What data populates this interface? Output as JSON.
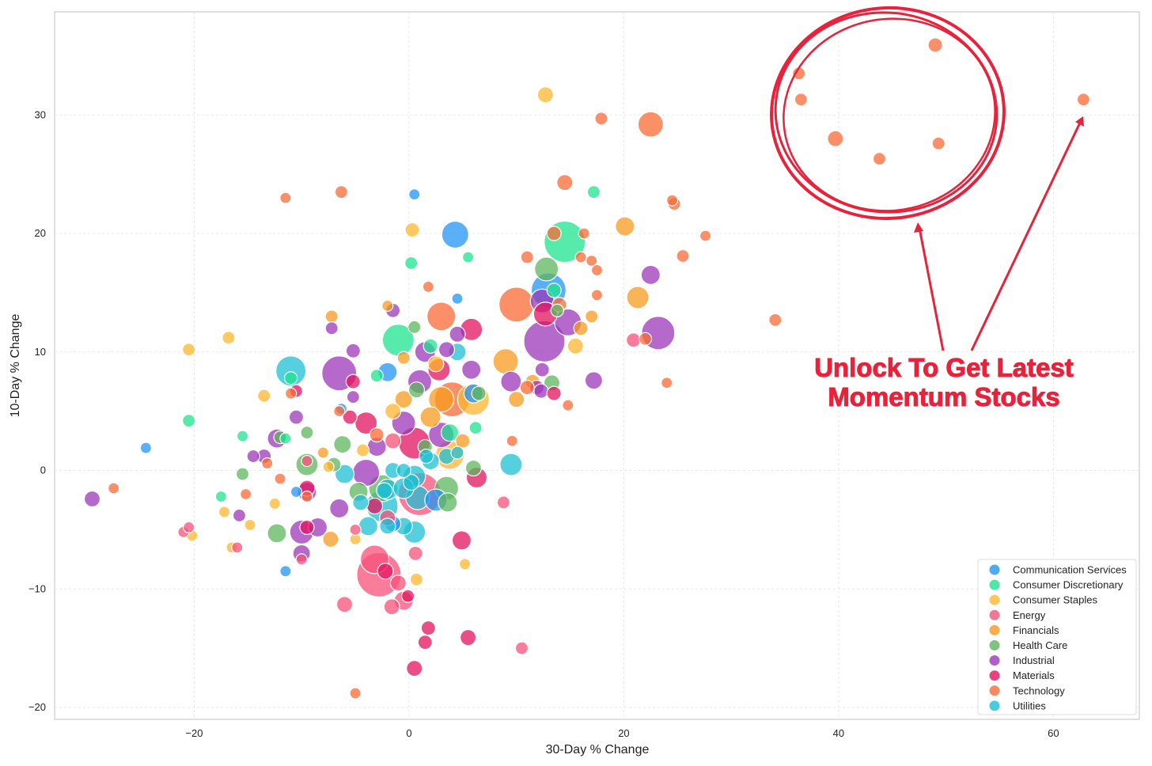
{
  "chart_data": {
    "type": "scatter",
    "title": "",
    "xlabel": "30-Day % Change",
    "ylabel": "10-Day % Change",
    "xlim": [
      -33,
      68
    ],
    "ylim": [
      -21,
      38.7
    ],
    "xticks": [
      -20,
      0,
      20,
      40,
      60
    ],
    "yticks": [
      -20,
      -10,
      0,
      10,
      20,
      30
    ],
    "xtick_labels": [
      "−20",
      "0",
      "20",
      "40",
      "60"
    ],
    "ytick_labels": [
      "−20",
      "−10",
      "0",
      "10",
      "20",
      "30"
    ],
    "grid": true,
    "legend_position": "bottom-right",
    "series": [
      {
        "name": "Communication Services",
        "color": "#2196F3",
        "points": [
          [
            -24.5,
            1.9,
            7
          ],
          [
            0.5,
            23.3,
            7
          ],
          [
            4.3,
            19.9,
            17
          ],
          [
            -11.5,
            -8.5,
            7
          ],
          [
            13,
            15.2,
            22
          ],
          [
            -2,
            8.3,
            12
          ],
          [
            -10.5,
            -1.8,
            7
          ],
          [
            -6.3,
            5.2,
            7
          ],
          [
            4.5,
            14.5,
            7
          ],
          [
            6,
            6.5,
            12
          ],
          [
            -1.5,
            -4.5,
            10
          ],
          [
            2.5,
            -2.5,
            14
          ]
        ]
      },
      {
        "name": "Consumer Discretionary",
        "color": "#1DE38F",
        "points": [
          [
            -20.5,
            4.2,
            8
          ],
          [
            -17.5,
            -2.2,
            7
          ],
          [
            -15.5,
            2.9,
            7
          ],
          [
            -11.5,
            2.7,
            7
          ],
          [
            14.5,
            19.3,
            26
          ],
          [
            17.2,
            23.5,
            8
          ],
          [
            5.5,
            18,
            7
          ],
          [
            0.2,
            17.5,
            8
          ],
          [
            -1,
            11,
            20
          ],
          [
            13.5,
            15.2,
            9
          ],
          [
            -3,
            8,
            8
          ],
          [
            6.2,
            3.6,
            8
          ],
          [
            -11,
            7.8,
            8
          ],
          [
            2,
            10.5,
            9
          ],
          [
            3.8,
            3.2,
            11
          ]
        ]
      },
      {
        "name": "Consumer Staples",
        "color": "#FFB62E",
        "points": [
          [
            12.7,
            31.7,
            10
          ],
          [
            0.3,
            20.3,
            9
          ],
          [
            -20.5,
            10.2,
            8
          ],
          [
            -16.8,
            11.2,
            8
          ],
          [
            -13.5,
            6.3,
            8
          ],
          [
            -20.2,
            -5.5,
            7
          ],
          [
            -17.2,
            -3.5,
            7
          ],
          [
            -14.8,
            -4.6,
            7
          ],
          [
            -16.5,
            -6.5,
            7
          ],
          [
            5.2,
            -7.9,
            7
          ],
          [
            0.7,
            -9.2,
            8
          ],
          [
            -5,
            -5.8,
            7
          ],
          [
            15.5,
            10.5,
            10
          ],
          [
            6,
            6,
            20
          ],
          [
            3.8,
            1.3,
            18
          ],
          [
            -1.5,
            5,
            10
          ],
          [
            2.5,
            9,
            10
          ],
          [
            -7.5,
            0.3,
            7
          ],
          [
            -12.5,
            -2.8,
            7
          ],
          [
            -4.3,
            1.7,
            8
          ]
        ]
      },
      {
        "name": "Energy",
        "color": "#F7527A",
        "points": [
          [
            -2.8,
            -8.8,
            28
          ],
          [
            -3.2,
            -7.5,
            18
          ],
          [
            -6,
            -11.3,
            10
          ],
          [
            -1.6,
            -11.5,
            10
          ],
          [
            -0.5,
            -11,
            12
          ],
          [
            0.6,
            -7,
            9
          ],
          [
            10.5,
            -15,
            8
          ],
          [
            8.8,
            -2.7,
            8
          ],
          [
            -1,
            -9.5,
            10
          ],
          [
            -2,
            -4,
            10
          ],
          [
            -5,
            -5,
            7
          ],
          [
            -21,
            -5.2,
            7
          ],
          [
            -20.5,
            -4.8,
            7
          ],
          [
            -16,
            -6.5,
            7
          ],
          [
            -10,
            -7.5,
            7
          ],
          [
            20.9,
            11,
            9
          ],
          [
            1,
            -2,
            27
          ],
          [
            -1.5,
            2.5,
            10
          ],
          [
            -9.5,
            0.8,
            7
          ]
        ]
      },
      {
        "name": "Financials",
        "color": "#F59B1E",
        "points": [
          [
            21.3,
            14.6,
            14
          ],
          [
            20.1,
            20.6,
            12
          ],
          [
            17,
            13,
            8
          ],
          [
            16,
            12,
            9
          ],
          [
            9,
            9.2,
            16
          ],
          [
            10,
            6,
            10
          ],
          [
            3,
            6,
            16
          ],
          [
            2,
            4.5,
            13
          ],
          [
            -0.5,
            6,
            11
          ],
          [
            -7.3,
            -5.8,
            10
          ],
          [
            -7.2,
            13,
            8
          ],
          [
            -2,
            13.9,
            7
          ],
          [
            5,
            2.5,
            9
          ],
          [
            -8,
            1.5,
            7
          ],
          [
            -0.5,
            9.5,
            8
          ],
          [
            11.5,
            7.5,
            9
          ]
        ]
      },
      {
        "name": "Health Care",
        "color": "#5DB55E",
        "points": [
          [
            12.8,
            17,
            15
          ],
          [
            13.8,
            13.5,
            8
          ],
          [
            13.3,
            7.4,
            10
          ],
          [
            0.5,
            12.1,
            8
          ],
          [
            0.7,
            6.8,
            10
          ],
          [
            3.5,
            -1.5,
            15
          ],
          [
            3.6,
            -2.7,
            12
          ],
          [
            -12.3,
            -5.3,
            12
          ],
          [
            -9.5,
            0.5,
            14
          ],
          [
            -6.2,
            2.2,
            11
          ],
          [
            -4.7,
            -1.8,
            12
          ],
          [
            -15.5,
            -0.3,
            8
          ],
          [
            -9.5,
            3.2,
            8
          ],
          [
            6,
            0.2,
            10
          ],
          [
            -2.5,
            -1.5,
            17
          ],
          [
            -7,
            0.5,
            9
          ],
          [
            1.5,
            2,
            9
          ],
          [
            -12,
            2.8,
            8
          ],
          [
            6.5,
            6.5,
            9
          ]
        ]
      },
      {
        "name": "Industrial",
        "color": "#9C37B8",
        "points": [
          [
            -29.5,
            -2.4,
            10
          ],
          [
            -6.5,
            8.2,
            22
          ],
          [
            -5.2,
            10.1,
            9
          ],
          [
            -7.2,
            12,
            8
          ],
          [
            12.6,
            10.9,
            26
          ],
          [
            23.2,
            11.6,
            21
          ],
          [
            22.5,
            16.5,
            12
          ],
          [
            14.8,
            12.5,
            17
          ],
          [
            12.4,
            14.3,
            15
          ],
          [
            17.2,
            7.6,
            11
          ],
          [
            -12.3,
            2.7,
            12
          ],
          [
            -13.5,
            1.2,
            9
          ],
          [
            -10,
            -5.2,
            15
          ],
          [
            -10,
            -7,
            11
          ],
          [
            -8.5,
            -4.8,
            12
          ],
          [
            -9.5,
            -1.8,
            12
          ],
          [
            -6.5,
            -3.2,
            12
          ],
          [
            -10.5,
            4.5,
            9
          ],
          [
            -5.2,
            6.2,
            8
          ],
          [
            -1.5,
            13.5,
            9
          ],
          [
            1.5,
            10,
            13
          ],
          [
            3.5,
            10.2,
            10
          ],
          [
            5.8,
            8.5,
            12
          ],
          [
            9.5,
            7.5,
            13
          ],
          [
            11.9,
            7,
            9
          ],
          [
            12.4,
            8.5,
            9
          ],
          [
            12.3,
            6.7,
            9
          ],
          [
            1,
            7.5,
            15
          ],
          [
            3,
            3,
            16
          ],
          [
            -0.5,
            4,
            15
          ],
          [
            -3,
            2,
            12
          ],
          [
            -15.8,
            -3.8,
            8
          ],
          [
            -14.5,
            1.2,
            8
          ],
          [
            -4,
            -0.2,
            17
          ],
          [
            4.5,
            11.5,
            10
          ]
        ]
      },
      {
        "name": "Materials",
        "color": "#E3135E",
        "points": [
          [
            0.5,
            -16.7,
            10
          ],
          [
            1.5,
            -14.5,
            9
          ],
          [
            1.8,
            -13.3,
            9
          ],
          [
            5.5,
            -14.1,
            10
          ],
          [
            4.9,
            -5.9,
            12
          ],
          [
            6.3,
            -0.6,
            13
          ],
          [
            -0.1,
            -10.6,
            8
          ],
          [
            -2.2,
            -8.5,
            10
          ],
          [
            12.7,
            13.2,
            15
          ],
          [
            5.8,
            11.9,
            14
          ],
          [
            13.5,
            6.5,
            9
          ],
          [
            2.8,
            8.5,
            14
          ],
          [
            0.5,
            2.3,
            20
          ],
          [
            -4,
            4,
            14
          ],
          [
            -3.2,
            -3,
            10
          ],
          [
            -9.5,
            -1.5,
            10
          ],
          [
            -5.2,
            7.5,
            9
          ],
          [
            -10.5,
            6.7,
            8
          ],
          [
            -9.5,
            -4.8,
            9
          ],
          [
            -5.5,
            4.5,
            9
          ]
        ]
      },
      {
        "name": "Technology",
        "color": "#F96B36",
        "points": [
          [
            22.5,
            29.2,
            16
          ],
          [
            62.8,
            31.3,
            8
          ],
          [
            49,
            35.9,
            9
          ],
          [
            36.3,
            33.5,
            8
          ],
          [
            36.5,
            31.3,
            8
          ],
          [
            39.7,
            28,
            10
          ],
          [
            49.3,
            27.6,
            8
          ],
          [
            43.8,
            26.3,
            8
          ],
          [
            17.9,
            29.7,
            8
          ],
          [
            14.5,
            24.3,
            10
          ],
          [
            -11.5,
            23,
            7
          ],
          [
            -6.3,
            23.5,
            8
          ],
          [
            24.5,
            22.8,
            7
          ],
          [
            24.7,
            22.5,
            8
          ],
          [
            27.6,
            19.8,
            7
          ],
          [
            25.5,
            18.1,
            8
          ],
          [
            16.3,
            20,
            7
          ],
          [
            13.5,
            20,
            9
          ],
          [
            11,
            18,
            8
          ],
          [
            16,
            18,
            7
          ],
          [
            17,
            17.7,
            7
          ],
          [
            17.5,
            16.9,
            7
          ],
          [
            17.5,
            14.8,
            7
          ],
          [
            34.1,
            12.7,
            8
          ],
          [
            22,
            11.1,
            8
          ],
          [
            24,
            7.4,
            7
          ],
          [
            14.8,
            5.5,
            7
          ],
          [
            9.6,
            2.5,
            7
          ],
          [
            -27.5,
            -1.5,
            7
          ],
          [
            -5,
            -18.8,
            7
          ],
          [
            10,
            14,
            22
          ],
          [
            3,
            13,
            18
          ],
          [
            14,
            14,
            9
          ],
          [
            11,
            7,
            9
          ],
          [
            1.8,
            15.5,
            7
          ],
          [
            -6.5,
            5,
            7
          ],
          [
            4,
            6,
            22
          ],
          [
            -3,
            3,
            9
          ],
          [
            -12,
            -0.7,
            7
          ],
          [
            -15.2,
            -2,
            7
          ],
          [
            -13.2,
            0.6,
            7
          ],
          [
            -9.5,
            -2.2,
            7
          ],
          [
            -11,
            6.5,
            7
          ]
        ]
      },
      {
        "name": "Utilities",
        "color": "#1DBFD3",
        "points": [
          [
            -11,
            8.4,
            19
          ],
          [
            4.5,
            10,
            11
          ],
          [
            9.5,
            0.5,
            14
          ],
          [
            0.5,
            -5.2,
            14
          ],
          [
            -0.5,
            -4.7,
            11
          ],
          [
            -2.5,
            -3,
            20
          ],
          [
            -4.5,
            -2.7,
            10
          ],
          [
            -3.8,
            -4.7,
            12
          ],
          [
            -2,
            -1.6,
            13
          ],
          [
            -0.5,
            -1.5,
            13
          ],
          [
            0.5,
            -0.5,
            14
          ],
          [
            -1.5,
            0,
            10
          ],
          [
            -6,
            -0.3,
            12
          ],
          [
            0.8,
            -2.3,
            15
          ],
          [
            2,
            0.8,
            11
          ],
          [
            3.5,
            1.2,
            10
          ],
          [
            4.5,
            1.5,
            8
          ],
          [
            -2,
            -4.7,
            10
          ],
          [
            -0.5,
            0,
            9
          ],
          [
            0.2,
            -1,
            10
          ],
          [
            1.6,
            1.2,
            9
          ],
          [
            -2.3,
            -1.7,
            10
          ]
        ]
      }
    ]
  },
  "annotation": {
    "text_line1": "Unlock To Get Latest",
    "text_line2": "Momentum Stocks",
    "color": "#e8223a"
  }
}
